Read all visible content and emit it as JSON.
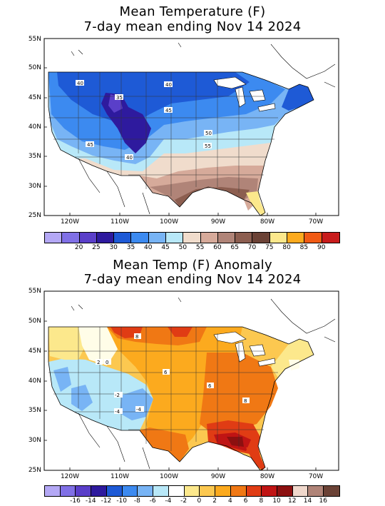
{
  "top": {
    "title_line1": "Mean Temperature (F)",
    "title_line2": "7-day mean ending Nov 14 2024",
    "lat_labels": [
      "55N",
      "50N",
      "45N",
      "40N",
      "35N",
      "30N",
      "25N"
    ],
    "lon_labels": [
      "120W",
      "110W",
      "100W",
      "90W",
      "80W",
      "70W"
    ],
    "contour_labels": [
      "40",
      "35",
      "40",
      "45",
      "50",
      "45",
      "40",
      "55"
    ],
    "colorbar": {
      "colors": [
        "#b4a8f5",
        "#8070e6",
        "#5a3fc9",
        "#2e1a9e",
        "#1e5ad6",
        "#3c8af0",
        "#78b4f5",
        "#b8e8f8",
        "#f0dccc",
        "#d6aa9a",
        "#b08478",
        "#8c5e50",
        "#6b4236",
        "#fce88c",
        "#fcaa1e",
        "#f05a14",
        "#c81c1c"
      ],
      "labels": [
        "20",
        "25",
        "30",
        "35",
        "40",
        "45",
        "50",
        "55",
        "60",
        "65",
        "70",
        "75",
        "80",
        "85",
        "90"
      ]
    }
  },
  "bottom": {
    "title_line1": "Mean Temp (F) Anomaly",
    "title_line2": "7-day mean ending Nov 14 2024",
    "lat_labels": [
      "55N",
      "50N",
      "45N",
      "40N",
      "35N",
      "30N",
      "25N"
    ],
    "lon_labels": [
      "120W",
      "110W",
      "100W",
      "90W",
      "80W",
      "70W"
    ],
    "contour_labels": [
      "8",
      "6",
      "2",
      "0",
      "-2",
      "-4",
      "-4",
      "8",
      "6"
    ],
    "colorbar": {
      "colors": [
        "#b4a8f5",
        "#8070e6",
        "#5a3fc9",
        "#2e1a9e",
        "#1e5ad6",
        "#3c8af0",
        "#78b4f5",
        "#b8e8f8",
        "#ffffff",
        "#fce88c",
        "#fcc850",
        "#fcaa1e",
        "#f07814",
        "#e03c14",
        "#c01414",
        "#8c1010",
        "#f0d8cc",
        "#b08478",
        "#6b4236"
      ],
      "labels": [
        "-16",
        "-14",
        "-12",
        "-10",
        "-8",
        "-6",
        "-4",
        "-2",
        "0",
        "2",
        "4",
        "6",
        "8",
        "10",
        "12",
        "14",
        "16"
      ]
    }
  }
}
